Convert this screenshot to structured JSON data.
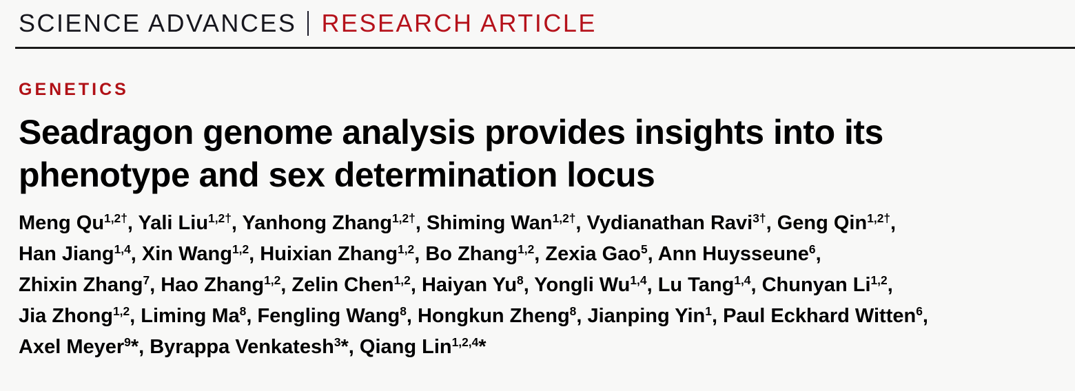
{
  "page": {
    "background": "#f8f8f7"
  },
  "masthead": {
    "journal": "SCIENCE ADVANCES",
    "separator": "|",
    "article_type": "RESEARCH ARTICLE",
    "journal_color": "#16161d",
    "article_type_color": "#b5121b",
    "rule_color": "#1a1a1a"
  },
  "section": {
    "label": "GENETICS",
    "color": "#b01116"
  },
  "title": {
    "line1": "Seadragon genome analysis provides insights into its",
    "line2": "phenotype and sex determination locus"
  },
  "authors": {
    "lines": [
      [
        {
          "name": "Meng Qu",
          "sup": "1,2†",
          "after": ", "
        },
        {
          "name": "Yali Liu",
          "sup": "1,2†",
          "after": ", "
        },
        {
          "name": "Yanhong Zhang",
          "sup": "1,2†",
          "after": ", "
        },
        {
          "name": "Shiming Wan",
          "sup": "1,2†",
          "after": ", "
        },
        {
          "name": "Vydianathan Ravi",
          "sup": "3†",
          "after": ", "
        },
        {
          "name": "Geng Qin",
          "sup": "1,2†",
          "after": ","
        }
      ],
      [
        {
          "name": "Han Jiang",
          "sup": "1,4",
          "after": ", "
        },
        {
          "name": "Xin Wang",
          "sup": "1,2",
          "after": ", "
        },
        {
          "name": "Huixian Zhang",
          "sup": "1,2",
          "after": ", "
        },
        {
          "name": "Bo Zhang",
          "sup": "1,2",
          "after": ", "
        },
        {
          "name": "Zexia Gao",
          "sup": "5",
          "after": ", "
        },
        {
          "name": "Ann Huysseune",
          "sup": "6",
          "after": ","
        }
      ],
      [
        {
          "name": "Zhixin Zhang",
          "sup": "7",
          "after": ", "
        },
        {
          "name": "Hao Zhang",
          "sup": "1,2",
          "after": ", "
        },
        {
          "name": "Zelin Chen",
          "sup": "1,2",
          "after": ", "
        },
        {
          "name": "Haiyan Yu",
          "sup": "8",
          "after": ", "
        },
        {
          "name": "Yongli Wu",
          "sup": "1,4",
          "after": ", "
        },
        {
          "name": "Lu Tang",
          "sup": "1,4",
          "after": ", "
        },
        {
          "name": "Chunyan Li",
          "sup": "1,2",
          "after": ","
        }
      ],
      [
        {
          "name": "Jia Zhong",
          "sup": "1,2",
          "after": ", "
        },
        {
          "name": "Liming Ma",
          "sup": "8",
          "after": ", "
        },
        {
          "name": "Fengling Wang",
          "sup": "8",
          "after": ", "
        },
        {
          "name": "Hongkun Zheng",
          "sup": "8",
          "after": ", "
        },
        {
          "name": "Jianping Yin",
          "sup": "1",
          "after": ", "
        },
        {
          "name": "Paul Eckhard Witten",
          "sup": "6",
          "after": ","
        }
      ],
      [
        {
          "name": "Axel Meyer",
          "sup": "9",
          "after": "*, "
        },
        {
          "name": "Byrappa Venkatesh",
          "sup": "3",
          "after": "*, "
        },
        {
          "name": "Qiang Lin",
          "sup": "1,2,4",
          "after": "*"
        }
      ]
    ]
  }
}
